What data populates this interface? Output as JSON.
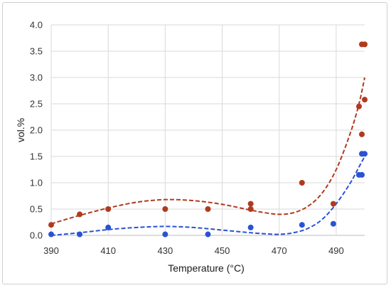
{
  "chart_data": {
    "type": "scatter",
    "title": "",
    "xlabel": "Temperature (°C)",
    "ylabel": "vol.%",
    "xlim": [
      390,
      500
    ],
    "ylim": [
      0,
      4
    ],
    "x_ticks": [
      390,
      410,
      430,
      450,
      470,
      490
    ],
    "y_ticks": [
      0,
      0.5,
      1,
      1.5,
      2,
      2.5,
      3,
      3.5,
      4
    ],
    "x_tick_labels": [
      "390",
      "410",
      "430",
      "450",
      "470",
      "490"
    ],
    "y_tick_labels": [
      "0.0",
      "0.5",
      "1.0",
      "1.5",
      "2.0",
      "2.5",
      "3.0",
      "3.5",
      "4.0"
    ],
    "grid": {
      "vertical": true,
      "horizontal": true
    },
    "legend": "none",
    "series": [
      {
        "color": "#b03a1e",
        "points": [
          [
            390,
            0.2
          ],
          [
            400,
            0.4
          ],
          [
            410,
            0.5
          ],
          [
            430,
            0.5
          ],
          [
            445,
            0.5
          ],
          [
            460,
            0.5
          ],
          [
            460,
            0.6
          ],
          [
            478,
            1.0
          ],
          [
            489,
            0.6
          ],
          [
            498,
            2.45
          ],
          [
            499,
            1.92
          ],
          [
            499,
            3.63
          ],
          [
            500,
            3.63
          ],
          [
            500,
            2.58
          ]
        ],
        "trendline": [
          [
            390,
            0.22
          ],
          [
            400,
            0.38
          ],
          [
            410,
            0.52
          ],
          [
            420,
            0.63
          ],
          [
            430,
            0.68
          ],
          [
            440,
            0.66
          ],
          [
            450,
            0.59
          ],
          [
            460,
            0.48
          ],
          [
            465,
            0.43
          ],
          [
            470,
            0.4
          ],
          [
            475,
            0.43
          ],
          [
            480,
            0.55
          ],
          [
            485,
            0.8
          ],
          [
            490,
            1.25
          ],
          [
            495,
            1.95
          ],
          [
            498,
            2.5
          ],
          [
            500,
            3.0
          ]
        ]
      },
      {
        "color": "#2a52d4",
        "points": [
          [
            390,
            0.02
          ],
          [
            400,
            0.02
          ],
          [
            410,
            0.15
          ],
          [
            430,
            0.02
          ],
          [
            445,
            0.02
          ],
          [
            460,
            0.15
          ],
          [
            478,
            0.2
          ],
          [
            489,
            0.22
          ],
          [
            498,
            1.15
          ],
          [
            499,
            1.15
          ],
          [
            499,
            1.55
          ],
          [
            500,
            1.55
          ]
        ],
        "trendline": [
          [
            390,
            0.0
          ],
          [
            400,
            0.05
          ],
          [
            410,
            0.11
          ],
          [
            420,
            0.15
          ],
          [
            430,
            0.17
          ],
          [
            440,
            0.15
          ],
          [
            450,
            0.1
          ],
          [
            460,
            0.05
          ],
          [
            465,
            0.03
          ],
          [
            470,
            0.02
          ],
          [
            475,
            0.05
          ],
          [
            480,
            0.13
          ],
          [
            485,
            0.3
          ],
          [
            490,
            0.6
          ],
          [
            495,
            1.0
          ],
          [
            498,
            1.3
          ],
          [
            500,
            1.5
          ]
        ]
      }
    ]
  }
}
